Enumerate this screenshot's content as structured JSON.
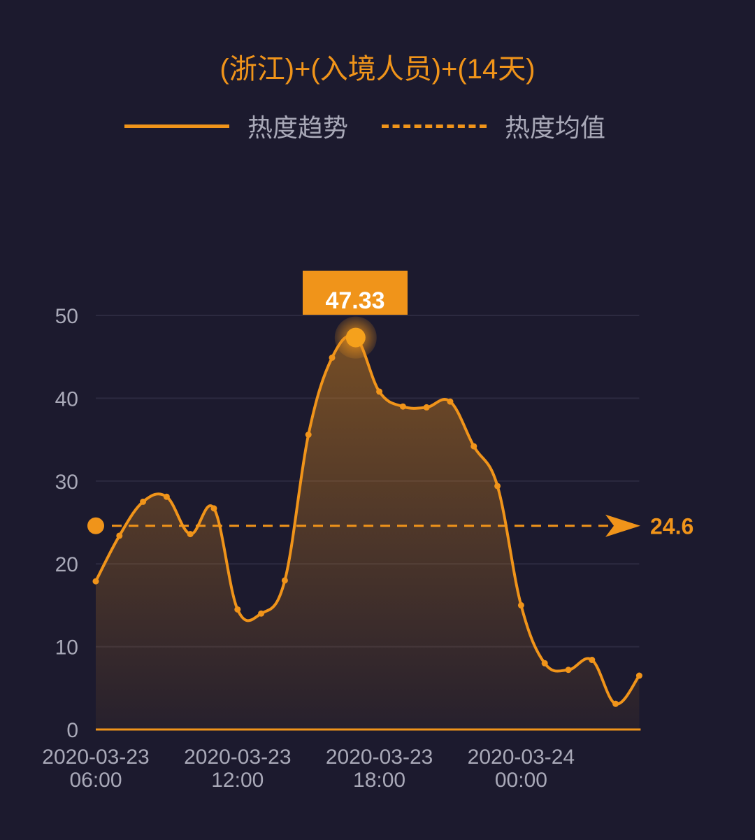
{
  "title": "(浙江)+(入境人员)+(14天)",
  "legend": [
    {
      "label": "热度趋势",
      "style": "solid"
    },
    {
      "label": "热度均值",
      "style": "dashed"
    }
  ],
  "tooltip": {
    "value": "47.33"
  },
  "average": {
    "value": 24.6,
    "label": "24.6"
  },
  "colors": {
    "accent": "#f0941a",
    "background": "#1c1a2e",
    "text": "#a9a9b8",
    "tooltip_text": "#ffffff"
  },
  "chart_data": {
    "type": "area",
    "title": "(浙江)+(入境人员)+(14天)",
    "xlabel": "",
    "ylabel": "",
    "ylim": [
      0,
      50
    ],
    "yticks": [
      0,
      10,
      20,
      30,
      40,
      50
    ],
    "xtick_labels": [
      {
        "date": "2020-03-23",
        "time": "06:00",
        "index": 0
      },
      {
        "date": "2020-03-23",
        "time": "12:00",
        "index": 6
      },
      {
        "date": "2020-03-23",
        "time": "18:00",
        "index": 12
      },
      {
        "date": "2020-03-24",
        "time": "00:00",
        "index": 18
      }
    ],
    "grid": true,
    "legend_position": "top",
    "x": [
      "03-23 06:00",
      "03-23 07:00",
      "03-23 08:00",
      "03-23 09:00",
      "03-23 10:00",
      "03-23 11:00",
      "03-23 12:00",
      "03-23 13:00",
      "03-23 14:00",
      "03-23 15:00",
      "03-23 16:00",
      "03-23 17:00",
      "03-23 18:00",
      "03-23 19:00",
      "03-23 20:00",
      "03-23 21:00",
      "03-23 22:00",
      "03-23 23:00",
      "03-24 00:00",
      "03-24 01:00",
      "03-24 02:00",
      "03-24 03:00",
      "03-24 04:00",
      "03-24 05:00"
    ],
    "series": [
      {
        "name": "热度趋势",
        "values": [
          17.9,
          23.4,
          27.5,
          28.1,
          23.6,
          26.7,
          14.5,
          14.0,
          18.0,
          35.6,
          44.9,
          47.33,
          40.8,
          39.0,
          38.9,
          39.6,
          34.2,
          29.4,
          15.0,
          8.0,
          7.2,
          8.4,
          3.1,
          6.5
        ]
      },
      {
        "name": "热度均值",
        "values": [
          24.6
        ]
      }
    ],
    "annotations": [
      {
        "type": "max-tooltip",
        "index": 11,
        "text": "47.33"
      },
      {
        "type": "mark-line",
        "value": 24.6,
        "text": "24.6"
      }
    ]
  }
}
